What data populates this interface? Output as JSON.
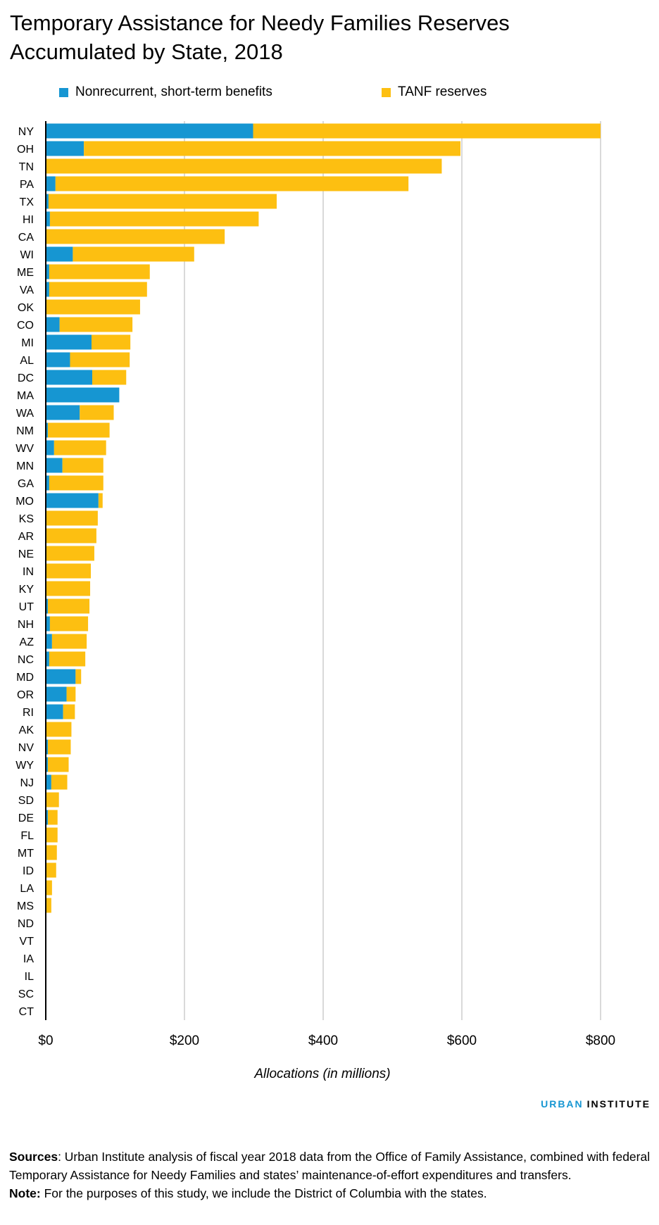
{
  "title_line1": "Temporary Assistance for Needy Families Reserves",
  "title_line2": "Accumulated by State, 2018",
  "logo": {
    "part1": "URBAN",
    "part2": "INSTITUTE",
    "accent": "#1696d2"
  },
  "notes": {
    "sources_label": "Sources",
    "sources_text": ": Urban Institute analysis of fiscal year 2018 data from the Office of Family Assistance, combined with federal Temporary Assistance for Needy Families and states’ maintenance-of-effort expenditures and transfers.",
    "note_label": "Note:",
    "note_text": " For the purposes of this study, we include the District of Columbia with the states."
  },
  "chart_data": {
    "type": "bar",
    "orientation": "horizontal",
    "stacked": true,
    "title": "Temporary Assistance for Needy Families Reserves Accumulated by State, 2018",
    "xlabel": "Allocations (in millions)",
    "ylabel": "",
    "xlim": [
      0,
      800
    ],
    "x_ticks": [
      "$0",
      "$200",
      "$400",
      "$600",
      "$800"
    ],
    "x_tick_values": [
      0,
      200,
      400,
      600,
      800
    ],
    "grid": "vertical",
    "legend_position": "top",
    "categories": [
      "NY",
      "OH",
      "TN",
      "PA",
      "TX",
      "HI",
      "CA",
      "WI",
      "ME",
      "VA",
      "OK",
      "CO",
      "MI",
      "AL",
      "DC",
      "MA",
      "WA",
      "NM",
      "WV",
      "MN",
      "GA",
      "MO",
      "KS",
      "AR",
      "NE",
      "IN",
      "KY",
      "UT",
      "NH",
      "AZ",
      "NC",
      "MD",
      "OR",
      "RI",
      "AK",
      "NV",
      "WY",
      "NJ",
      "SD",
      "DE",
      "FL",
      "MT",
      "ID",
      "LA",
      "MS",
      "ND",
      "VT",
      "IA",
      "IL",
      "SC",
      "CT"
    ],
    "series": [
      {
        "name": "Nonrecurrent, short-term benefits",
        "color": "#1696d2",
        "values": [
          299,
          55,
          0,
          14,
          4,
          6,
          0,
          39,
          5,
          5,
          0,
          20,
          66,
          35,
          67,
          106,
          49,
          3,
          12,
          24,
          5,
          76,
          0,
          0,
          0,
          0,
          0,
          3,
          6,
          9,
          5,
          43,
          30,
          25,
          0,
          3,
          3,
          8,
          0,
          3,
          0,
          0,
          0,
          0,
          0,
          0,
          0,
          0,
          0,
          0,
          0
        ]
      },
      {
        "name": "TANF reserves",
        "color": "#fdbf11",
        "values": [
          501,
          543,
          571,
          509,
          329,
          301,
          258,
          175,
          145,
          141,
          136,
          105,
          56,
          86,
          49,
          0,
          49,
          89,
          75,
          59,
          78,
          6,
          75,
          73,
          70,
          65,
          64,
          60,
          55,
          50,
          52,
          8,
          13,
          17,
          37,
          33,
          30,
          23,
          19,
          14,
          17,
          16,
          15,
          9,
          8,
          1,
          0,
          0,
          0,
          0,
          0
        ]
      }
    ]
  }
}
